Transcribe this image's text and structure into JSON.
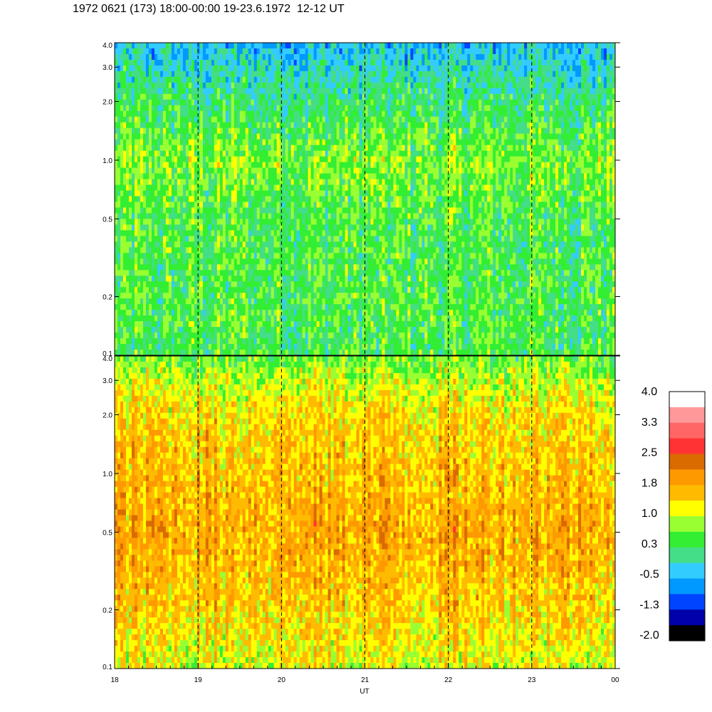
{
  "title": "1972 0621 (173) 18:00-00:00 19-23.6.1972  12-12 UT",
  "chart_data": [
    {
      "type": "heatmap",
      "panel": "upper",
      "x_range": [
        18,
        24
      ],
      "y_range": [
        0.1,
        4.0
      ],
      "y_scale": "log",
      "y_ticks": [
        "0.1",
        "0.2",
        "0.5",
        "1.0",
        "2.0",
        "3.0",
        "4.0"
      ],
      "y_tick_values": [
        0.1,
        0.2,
        0.5,
        1.0,
        2.0,
        3.0,
        4.0
      ],
      "base_level_by_height": [
        {
          "y": 0.1,
          "value": 0.4
        },
        {
          "y": 0.5,
          "value": 0.4
        },
        {
          "y": 1.0,
          "value": 0.7
        },
        {
          "y": 2.0,
          "value": 0.2
        },
        {
          "y": 4.0,
          "value": -0.4
        }
      ],
      "dashed_hour_lines": [
        19,
        20,
        21,
        22,
        23
      ]
    },
    {
      "type": "heatmap",
      "panel": "lower",
      "x_range": [
        18,
        24
      ],
      "y_range": [
        0.1,
        4.0
      ],
      "y_scale": "log",
      "y_ticks": [
        "0.1",
        "0.2",
        "0.5",
        "1.0",
        "2.0",
        "3.0",
        "4.0"
      ],
      "y_tick_values": [
        0.1,
        0.2,
        0.5,
        1.0,
        2.0,
        3.0,
        4.0
      ],
      "base_level_by_height": [
        {
          "y": 0.1,
          "value": 1.1
        },
        {
          "y": 0.2,
          "value": 1.5
        },
        {
          "y": 0.5,
          "value": 1.8
        },
        {
          "y": 1.0,
          "value": 1.6
        },
        {
          "y": 2.0,
          "value": 1.4
        },
        {
          "y": 3.0,
          "value": 1.0
        },
        {
          "y": 4.0,
          "value": 0.6
        }
      ],
      "dashed_hour_lines": [
        19,
        20,
        21,
        22,
        23
      ],
      "x_ticks": [
        "18",
        "19",
        "20",
        "21",
        "22",
        "23",
        "00"
      ],
      "x_tick_values": [
        18,
        19,
        20,
        21,
        22,
        23,
        24
      ],
      "xlabel": "UT"
    }
  ],
  "colorbar": {
    "labels": [
      "4.0",
      "3.3",
      "2.5",
      "1.8",
      "1.0",
      "0.3",
      "-0.5",
      "-1.3",
      "-2.0"
    ],
    "min": -2.0,
    "max": 4.0,
    "colors": [
      "#ffffff",
      "#ff9999",
      "#ff6666",
      "#ff3333",
      "#d96b00",
      "#ff9900",
      "#ffbb00",
      "#ffff00",
      "#99ff33",
      "#33ee33",
      "#44dd88",
      "#33ccff",
      "#0099ff",
      "#0044ff",
      "#0000aa",
      "#000000"
    ]
  }
}
